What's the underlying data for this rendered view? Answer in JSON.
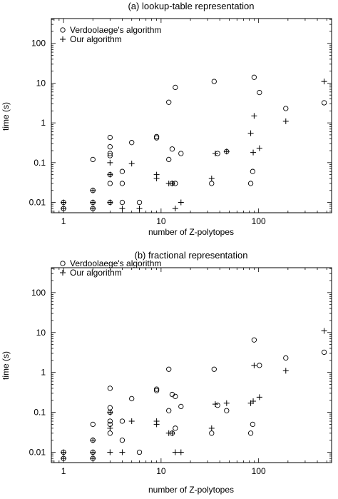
{
  "chart_data": [
    {
      "type": "scatter",
      "title": "(a) lookup-table representation",
      "xlabel": "number of Z-polytopes",
      "ylabel": "time (s)",
      "xscale": "log",
      "yscale": "log",
      "xlim": [
        0.75,
        560
      ],
      "ylim": [
        0.0055,
        420
      ],
      "xticks": [
        {
          "v": 1,
          "label": "1"
        },
        {
          "v": 10,
          "label": "10"
        },
        {
          "v": 100,
          "label": "100"
        }
      ],
      "yticks": [
        {
          "v": 0.01,
          "label": "0.01"
        },
        {
          "v": 0.1,
          "label": "0.1"
        },
        {
          "v": 1,
          "label": "1"
        },
        {
          "v": 10,
          "label": "10"
        },
        {
          "v": 100,
          "label": "100"
        }
      ],
      "legend_position": "top-left",
      "series": [
        {
          "name": "Verdoolaege's algorithm",
          "marker": "circle",
          "points": [
            [
              1,
              0.01
            ],
            [
              1,
              0.007
            ],
            [
              2,
              0.12
            ],
            [
              2,
              0.02
            ],
            [
              2,
              0.01
            ],
            [
              2,
              0.007
            ],
            [
              3,
              0.43
            ],
            [
              3,
              0.25
            ],
            [
              3,
              0.17
            ],
            [
              3,
              0.15
            ],
            [
              3,
              0.05
            ],
            [
              3,
              0.03
            ],
            [
              3,
              0.01
            ],
            [
              4,
              0.06
            ],
            [
              4,
              0.03
            ],
            [
              4,
              0.01
            ],
            [
              5,
              0.32
            ],
            [
              6,
              0.01
            ],
            [
              9,
              0.45
            ],
            [
              9,
              0.42
            ],
            [
              12,
              3.3
            ],
            [
              12,
              0.12
            ],
            [
              13,
              0.22
            ],
            [
              13,
              0.03
            ],
            [
              14,
              7.8
            ],
            [
              14,
              0.03
            ],
            [
              16,
              0.17
            ],
            [
              33,
              0.03
            ],
            [
              35,
              11
            ],
            [
              38,
              0.17
            ],
            [
              47,
              0.19
            ],
            [
              83,
              0.03
            ],
            [
              87,
              0.06
            ],
            [
              90,
              14
            ],
            [
              102,
              5.8
            ],
            [
              190,
              2.3
            ],
            [
              470,
              3.2
            ]
          ]
        },
        {
          "name": "Our algorithm",
          "marker": "plus",
          "points": [
            [
              1,
              0.01
            ],
            [
              1,
              0.007
            ],
            [
              2,
              0.02
            ],
            [
              2,
              0.01
            ],
            [
              2,
              0.007
            ],
            [
              3,
              0.1
            ],
            [
              3,
              0.05
            ],
            [
              3,
              0.01
            ],
            [
              4,
              0.007
            ],
            [
              5,
              0.095
            ],
            [
              6,
              0.007
            ],
            [
              9,
              0.05
            ],
            [
              9,
              0.04
            ],
            [
              12,
              0.03
            ],
            [
              13,
              0.03
            ],
            [
              14,
              0.007
            ],
            [
              16,
              0.01
            ],
            [
              33,
              0.04
            ],
            [
              36,
              0.17
            ],
            [
              47,
              0.19
            ],
            [
              83,
              0.55
            ],
            [
              88,
              0.18
            ],
            [
              90,
              1.5
            ],
            [
              102,
              0.23
            ],
            [
              190,
              1.1
            ],
            [
              470,
              11
            ]
          ]
        }
      ]
    },
    {
      "type": "scatter",
      "title": "(b) fractional representation",
      "xlabel": "number of Z-polytopes",
      "ylabel": "time (s)",
      "xscale": "log",
      "yscale": "log",
      "xlim": [
        0.75,
        560
      ],
      "ylim": [
        0.0055,
        420
      ],
      "xticks": [
        {
          "v": 1,
          "label": "1"
        },
        {
          "v": 10,
          "label": "10"
        },
        {
          "v": 100,
          "label": "100"
        }
      ],
      "yticks": [
        {
          "v": 0.01,
          "label": "0.01"
        },
        {
          "v": 0.1,
          "label": "0.1"
        },
        {
          "v": 1,
          "label": "1"
        },
        {
          "v": 10,
          "label": "10"
        },
        {
          "v": 100,
          "label": "100"
        }
      ],
      "legend_position": "top-left",
      "series": [
        {
          "name": "Verdoolaege's algorithm",
          "marker": "circle",
          "points": [
            [
              1,
              0.01
            ],
            [
              1,
              0.007
            ],
            [
              2,
              0.05
            ],
            [
              2,
              0.02
            ],
            [
              2,
              0.01
            ],
            [
              2,
              0.007
            ],
            [
              3,
              0.4
            ],
            [
              3,
              0.13
            ],
            [
              3,
              0.1
            ],
            [
              3,
              0.06
            ],
            [
              3,
              0.05
            ],
            [
              3,
              0.03
            ],
            [
              4,
              0.06
            ],
            [
              4,
              0.02
            ],
            [
              5,
              0.22
            ],
            [
              6,
              0.01
            ],
            [
              9,
              0.38
            ],
            [
              9,
              0.35
            ],
            [
              12,
              1.2
            ],
            [
              12,
              0.11
            ],
            [
              13,
              0.28
            ],
            [
              13,
              0.03
            ],
            [
              14,
              0.25
            ],
            [
              14,
              0.04
            ],
            [
              16,
              0.14
            ],
            [
              33,
              0.03
            ],
            [
              35,
              1.2
            ],
            [
              38,
              0.15
            ],
            [
              47,
              0.11
            ],
            [
              83,
              0.03
            ],
            [
              87,
              0.05
            ],
            [
              90,
              6.5
            ],
            [
              102,
              1.5
            ],
            [
              190,
              2.3
            ],
            [
              470,
              3.2
            ]
          ]
        },
        {
          "name": "Our algorithm",
          "marker": "plus",
          "points": [
            [
              1,
              0.01
            ],
            [
              1,
              0.007
            ],
            [
              2,
              0.02
            ],
            [
              2,
              0.01
            ],
            [
              2,
              0.007
            ],
            [
              3,
              0.1
            ],
            [
              3,
              0.04
            ],
            [
              3,
              0.01
            ],
            [
              4,
              0.01
            ],
            [
              5,
              0.06
            ],
            [
              9,
              0.06
            ],
            [
              9,
              0.05
            ],
            [
              12,
              0.03
            ],
            [
              13,
              0.03
            ],
            [
              14,
              0.01
            ],
            [
              16,
              0.01
            ],
            [
              33,
              0.04
            ],
            [
              36,
              0.16
            ],
            [
              47,
              0.17
            ],
            [
              83,
              0.17
            ],
            [
              88,
              0.19
            ],
            [
              90,
              1.5
            ],
            [
              102,
              0.24
            ],
            [
              190,
              1.1
            ],
            [
              470,
              11
            ]
          ]
        }
      ]
    }
  ]
}
